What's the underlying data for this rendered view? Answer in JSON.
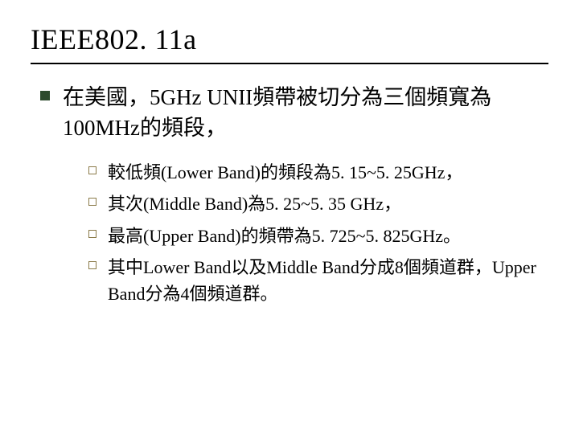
{
  "slide": {
    "title": "IEEE802. 11a",
    "title_fontsize": 36,
    "divider_color": "#000000",
    "main_bullet_color": "#2d4a2d",
    "sub_bullet_border_color": "#8b7b4a",
    "background_color": "#ffffff",
    "text_color": "#000000",
    "main_fontsize": 27,
    "sub_fontsize": 22,
    "main_item": "在美國，5GHz UNII頻帶被切分為三個頻寬為100MHz的頻段，",
    "sub_items": [
      "較低頻(Lower Band)的頻段為5. 15~5. 25GHz，",
      "其次(Middle Band)為5. 25~5. 35 GHz，",
      "最高(Upper Band)的頻帶為5. 725~5. 825GHz。",
      "其中Lower Band以及Middle Band分成8個頻道群，Upper Band分為4個頻道群。"
    ]
  }
}
